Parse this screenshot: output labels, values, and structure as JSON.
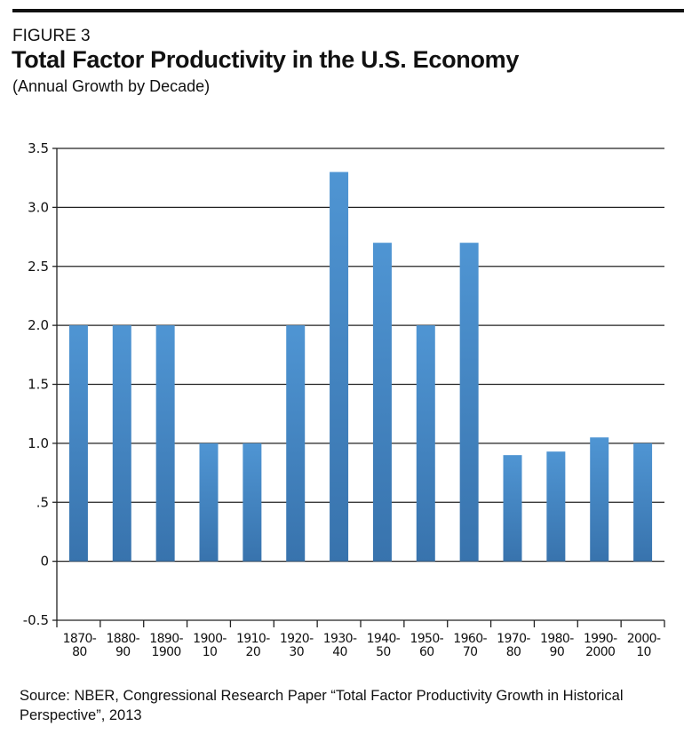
{
  "figure_label": "FIGURE 3",
  "source": "Source: NBER, Congressional Research Paper “Total Factor Productivity Growth in Historical Perspective”, 2013",
  "colors": {
    "bar_top": "#4f95d3",
    "bar_bottom": "#3873ad",
    "rule": "#111111"
  },
  "chart_data": {
    "type": "bar",
    "title": "Total Factor Productivity in the U.S. Economy",
    "subtitle": "(Annual Growth by Decade)",
    "xlabel": "",
    "ylabel": "",
    "ylim": [
      -0.5,
      3.5
    ],
    "yticks": [
      "3.5",
      "3.0",
      "2.5",
      "2.0",
      "1.5",
      "1.0",
      ".5",
      "0",
      "-0.5"
    ],
    "ytick_values": [
      3.5,
      3.0,
      2.5,
      2.0,
      1.5,
      1.0,
      0.5,
      0,
      -0.5
    ],
    "grid": true,
    "categories": [
      [
        "1870-",
        "80"
      ],
      [
        "1880-",
        "90"
      ],
      [
        "1890-",
        "1900"
      ],
      [
        "1900-",
        "10"
      ],
      [
        "1910-",
        "20"
      ],
      [
        "1920-",
        "30"
      ],
      [
        "1930-",
        "40"
      ],
      [
        "1940-",
        "50"
      ],
      [
        "1950-",
        "60"
      ],
      [
        "1960-",
        "70"
      ],
      [
        "1970-",
        "80"
      ],
      [
        "1980-",
        "90"
      ],
      [
        "1990-",
        "2000"
      ],
      [
        "2000-",
        "10"
      ]
    ],
    "values": [
      2.0,
      2.0,
      2.0,
      1.0,
      1.0,
      2.0,
      3.3,
      2.7,
      2.0,
      2.7,
      0.9,
      0.93,
      1.05,
      1.0
    ]
  }
}
